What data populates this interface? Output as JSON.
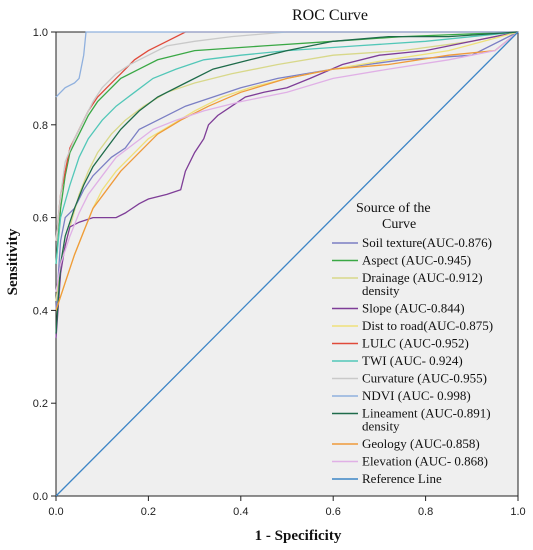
{
  "chart_data": {
    "type": "line",
    "title": "ROC Curve",
    "xlabel": "1 - Specificity",
    "ylabel": "Sensitivity",
    "xlim": [
      0,
      1
    ],
    "ylim": [
      0,
      1
    ],
    "x_ticks": [
      "0.0",
      "0.2",
      "0.4",
      "0.6",
      "0.8",
      "1.0"
    ],
    "y_ticks": [
      "0.0",
      "0.2",
      "0.4",
      "0.6",
      "0.8",
      "1.0"
    ],
    "grid": false,
    "legend": {
      "title_lines": [
        "Source of the",
        "Curve"
      ],
      "placement": "right-center"
    },
    "series": [
      {
        "name": "Soil texture",
        "label_lines": [
          "Soil texture(AUC-0.876)"
        ],
        "color": "#7b7fc4",
        "points": [
          [
            0,
            0.4
          ],
          [
            0.01,
            0.55
          ],
          [
            0.02,
            0.6
          ],
          [
            0.04,
            0.62
          ],
          [
            0.06,
            0.66
          ],
          [
            0.08,
            0.69
          ],
          [
            0.1,
            0.71
          ],
          [
            0.12,
            0.73
          ],
          [
            0.15,
            0.75
          ],
          [
            0.18,
            0.79
          ],
          [
            0.22,
            0.81
          ],
          [
            0.28,
            0.84
          ],
          [
            0.34,
            0.86
          ],
          [
            0.4,
            0.88
          ],
          [
            0.48,
            0.9
          ],
          [
            0.6,
            0.92
          ],
          [
            0.75,
            0.94
          ],
          [
            0.9,
            0.95
          ],
          [
            1,
            1
          ]
        ]
      },
      {
        "name": "Aspect",
        "label_lines": [
          "Aspect  (AUC-0.945)"
        ],
        "color": "#3aa845",
        "points": [
          [
            0,
            0.5
          ],
          [
            0.01,
            0.62
          ],
          [
            0.02,
            0.69
          ],
          [
            0.03,
            0.74
          ],
          [
            0.05,
            0.78
          ],
          [
            0.07,
            0.82
          ],
          [
            0.09,
            0.85
          ],
          [
            0.11,
            0.87
          ],
          [
            0.14,
            0.9
          ],
          [
            0.18,
            0.92
          ],
          [
            0.22,
            0.94
          ],
          [
            0.3,
            0.96
          ],
          [
            0.45,
            0.97
          ],
          [
            0.6,
            0.98
          ],
          [
            0.75,
            0.99
          ],
          [
            1,
            1
          ]
        ]
      },
      {
        "name": "Drainage density",
        "label_lines": [
          "Drainage  (AUC-0.912)",
          "density"
        ],
        "color": "#d8d88a",
        "points": [
          [
            0,
            0.42
          ],
          [
            0.01,
            0.5
          ],
          [
            0.03,
            0.58
          ],
          [
            0.05,
            0.65
          ],
          [
            0.07,
            0.7
          ],
          [
            0.09,
            0.74
          ],
          [
            0.12,
            0.78
          ],
          [
            0.15,
            0.81
          ],
          [
            0.19,
            0.84
          ],
          [
            0.24,
            0.87
          ],
          [
            0.3,
            0.89
          ],
          [
            0.38,
            0.91
          ],
          [
            0.48,
            0.93
          ],
          [
            0.6,
            0.95
          ],
          [
            0.75,
            0.96
          ],
          [
            0.9,
            0.98
          ],
          [
            1,
            1
          ]
        ]
      },
      {
        "name": "Slope",
        "label_lines": [
          "Slope  (AUC-0.844)"
        ],
        "color": "#7e3d97",
        "points": [
          [
            0,
            0.34
          ],
          [
            0.01,
            0.48
          ],
          [
            0.02,
            0.54
          ],
          [
            0.03,
            0.58
          ],
          [
            0.05,
            0.59
          ],
          [
            0.08,
            0.6
          ],
          [
            0.13,
            0.6
          ],
          [
            0.15,
            0.61
          ],
          [
            0.18,
            0.63
          ],
          [
            0.2,
            0.64
          ],
          [
            0.24,
            0.65
          ],
          [
            0.27,
            0.66
          ],
          [
            0.28,
            0.7
          ],
          [
            0.3,
            0.74
          ],
          [
            0.32,
            0.77
          ],
          [
            0.33,
            0.8
          ],
          [
            0.35,
            0.82
          ],
          [
            0.38,
            0.84
          ],
          [
            0.41,
            0.86
          ],
          [
            0.45,
            0.87
          ],
          [
            0.5,
            0.88
          ],
          [
            0.55,
            0.9
          ],
          [
            0.62,
            0.93
          ],
          [
            0.7,
            0.95
          ],
          [
            0.8,
            0.96
          ],
          [
            0.9,
            0.98
          ],
          [
            1,
            1
          ]
        ]
      },
      {
        "name": "Dist to road",
        "label_lines": [
          "Dist to road(AUC-0.875)"
        ],
        "color": "#efe07a",
        "points": [
          [
            0,
            0.4
          ],
          [
            0.02,
            0.46
          ],
          [
            0.04,
            0.52
          ],
          [
            0.06,
            0.57
          ],
          [
            0.08,
            0.62
          ],
          [
            0.1,
            0.66
          ],
          [
            0.13,
            0.7
          ],
          [
            0.16,
            0.73
          ],
          [
            0.2,
            0.77
          ],
          [
            0.25,
            0.8
          ],
          [
            0.3,
            0.83
          ],
          [
            0.36,
            0.86
          ],
          [
            0.42,
            0.88
          ],
          [
            0.5,
            0.9
          ],
          [
            0.6,
            0.92
          ],
          [
            0.72,
            0.94
          ],
          [
            0.85,
            0.96
          ],
          [
            1,
            1
          ]
        ]
      },
      {
        "name": "LULC",
        "label_lines": [
          "LULC   (AUC-0.952)"
        ],
        "color": "#e04a3a",
        "points": [
          [
            0,
            0.55
          ],
          [
            0.01,
            0.65
          ],
          [
            0.02,
            0.7
          ],
          [
            0.03,
            0.75
          ],
          [
            0.05,
            0.79
          ],
          [
            0.07,
            0.83
          ],
          [
            0.09,
            0.86
          ],
          [
            0.11,
            0.88
          ],
          [
            0.14,
            0.91
          ],
          [
            0.17,
            0.94
          ],
          [
            0.2,
            0.96
          ],
          [
            0.24,
            0.98
          ],
          [
            0.28,
            1
          ],
          [
            1,
            1
          ]
        ]
      },
      {
        "name": "TWI",
        "label_lines": [
          "TWI   (AUC- 0.924)"
        ],
        "color": "#52c7b8",
        "points": [
          [
            0,
            0.5
          ],
          [
            0.01,
            0.6
          ],
          [
            0.03,
            0.67
          ],
          [
            0.05,
            0.73
          ],
          [
            0.07,
            0.77
          ],
          [
            0.1,
            0.81
          ],
          [
            0.13,
            0.84
          ],
          [
            0.17,
            0.87
          ],
          [
            0.21,
            0.9
          ],
          [
            0.26,
            0.92
          ],
          [
            0.32,
            0.94
          ],
          [
            0.4,
            0.95
          ],
          [
            0.5,
            0.96
          ],
          [
            0.65,
            0.97
          ],
          [
            0.8,
            0.98
          ],
          [
            1,
            1
          ]
        ]
      },
      {
        "name": "Curvature",
        "label_lines": [
          "Curvature  (AUC-0.955)"
        ],
        "color": "#c9c9c9",
        "points": [
          [
            0,
            0.55
          ],
          [
            0.01,
            0.65
          ],
          [
            0.02,
            0.72
          ],
          [
            0.04,
            0.77
          ],
          [
            0.06,
            0.81
          ],
          [
            0.08,
            0.85
          ],
          [
            0.1,
            0.88
          ],
          [
            0.13,
            0.91
          ],
          [
            0.16,
            0.93
          ],
          [
            0.2,
            0.95
          ],
          [
            0.24,
            0.97
          ],
          [
            0.3,
            0.98
          ],
          [
            0.38,
            0.99
          ],
          [
            0.5,
            1
          ],
          [
            1,
            1
          ]
        ]
      },
      {
        "name": "NDVI",
        "label_lines": [
          "NDVI   (AUC- 0.998)"
        ],
        "color": "#8fb0de",
        "points": [
          [
            0,
            0.86
          ],
          [
            0.01,
            0.87
          ],
          [
            0.02,
            0.88
          ],
          [
            0.04,
            0.89
          ],
          [
            0.05,
            0.9
          ],
          [
            0.06,
            0.95
          ],
          [
            0.065,
            1
          ],
          [
            1,
            1
          ]
        ]
      },
      {
        "name": "Lineament density",
        "label_lines": [
          "Lineament (AUC-0.891)",
          "density"
        ],
        "color": "#1e6b4a",
        "points": [
          [
            0,
            0.35
          ],
          [
            0.01,
            0.5
          ],
          [
            0.02,
            0.56
          ],
          [
            0.04,
            0.62
          ],
          [
            0.06,
            0.67
          ],
          [
            0.08,
            0.71
          ],
          [
            0.11,
            0.75
          ],
          [
            0.14,
            0.79
          ],
          [
            0.18,
            0.83
          ],
          [
            0.22,
            0.86
          ],
          [
            0.28,
            0.89
          ],
          [
            0.34,
            0.92
          ],
          [
            0.42,
            0.94
          ],
          [
            0.5,
            0.96
          ],
          [
            0.6,
            0.98
          ],
          [
            0.72,
            0.99
          ],
          [
            0.85,
            0.99
          ],
          [
            1,
            1
          ]
        ]
      },
      {
        "name": "Geology",
        "label_lines": [
          "Geology  (AUC-0.858)"
        ],
        "color": "#ef9a3a",
        "points": [
          [
            0,
            0.4
          ],
          [
            0.02,
            0.46
          ],
          [
            0.04,
            0.52
          ],
          [
            0.06,
            0.57
          ],
          [
            0.08,
            0.62
          ],
          [
            0.11,
            0.66
          ],
          [
            0.14,
            0.7
          ],
          [
            0.18,
            0.74
          ],
          [
            0.22,
            0.78
          ],
          [
            0.27,
            0.81
          ],
          [
            0.33,
            0.84
          ],
          [
            0.4,
            0.87
          ],
          [
            0.5,
            0.9
          ],
          [
            0.6,
            0.92
          ],
          [
            0.72,
            0.93
          ],
          [
            0.85,
            0.95
          ],
          [
            0.95,
            0.96
          ],
          [
            1,
            1
          ]
        ]
      },
      {
        "name": "Elevation",
        "label_lines": [
          "Elevation  (AUC- 0.868)"
        ],
        "color": "#e0b0e6",
        "points": [
          [
            0,
            0.44
          ],
          [
            0.01,
            0.5
          ],
          [
            0.03,
            0.56
          ],
          [
            0.05,
            0.61
          ],
          [
            0.07,
            0.65
          ],
          [
            0.1,
            0.69
          ],
          [
            0.13,
            0.73
          ],
          [
            0.17,
            0.76
          ],
          [
            0.21,
            0.79
          ],
          [
            0.26,
            0.81
          ],
          [
            0.32,
            0.83
          ],
          [
            0.4,
            0.85
          ],
          [
            0.5,
            0.87
          ],
          [
            0.6,
            0.9
          ],
          [
            0.72,
            0.92
          ],
          [
            0.85,
            0.94
          ],
          [
            0.95,
            0.96
          ],
          [
            1,
            1
          ]
        ]
      },
      {
        "name": "Reference Line",
        "label_lines": [
          "Reference Line"
        ],
        "color": "#3d85c6",
        "points": [
          [
            0,
            0
          ],
          [
            1,
            1
          ]
        ]
      }
    ]
  },
  "colors": {
    "plot_background": "#efefef",
    "axis": "#222222"
  }
}
